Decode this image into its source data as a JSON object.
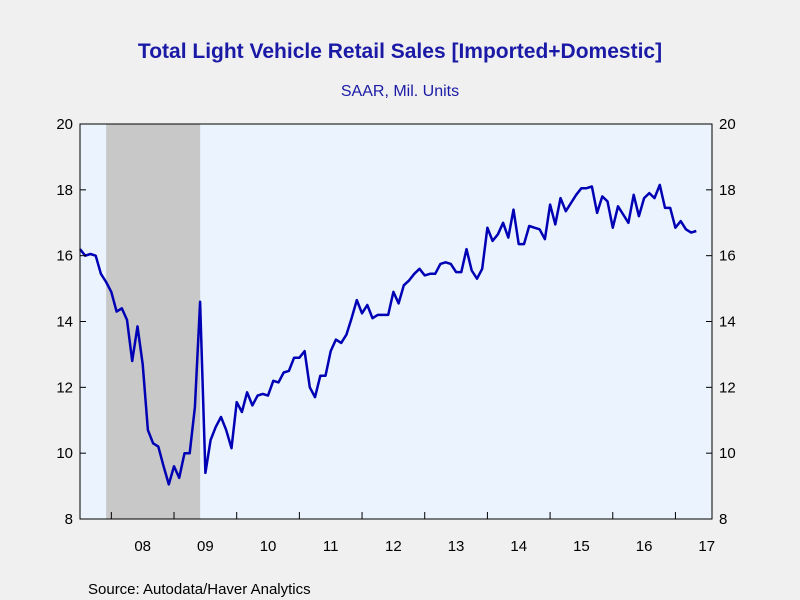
{
  "chart_data": {
    "type": "line",
    "title": "Total Light Vehicle Retail Sales [Imported+Domestic]",
    "subtitle": "SAAR, Mil. Units",
    "source": "Source:  Autodata/Haver Analytics",
    "ylim": [
      8,
      20
    ],
    "y_ticks": [
      "8",
      "10",
      "12",
      "14",
      "16",
      "18",
      "20"
    ],
    "x_ticks": [
      "08",
      "09",
      "10",
      "11",
      "12",
      "13",
      "14",
      "15",
      "16",
      "17"
    ],
    "grid": false,
    "recession": {
      "start": "2007-12",
      "end": "2009-06"
    },
    "colors": {
      "line": "#0000b4",
      "plot_bg": "#eaf3fe",
      "recession": "#c8c8c8"
    },
    "series": [
      {
        "start": "2007-07",
        "frequency": "monthly",
        "values": [
          16.2,
          16.0,
          16.05,
          16.0,
          15.45,
          15.2,
          14.9,
          14.3,
          14.4,
          14.05,
          12.8,
          13.85,
          12.7,
          10.7,
          10.3,
          10.2,
          9.6,
          9.05,
          9.6,
          9.25,
          10.0,
          10.0,
          11.4,
          14.6,
          9.4,
          10.4,
          10.8,
          11.1,
          10.7,
          10.15,
          11.55,
          11.25,
          11.85,
          11.45,
          11.75,
          11.8,
          11.75,
          12.2,
          12.15,
          12.45,
          12.5,
          12.9,
          12.9,
          13.1,
          12.0,
          11.7,
          12.35,
          12.35,
          13.1,
          13.45,
          13.35,
          13.6,
          14.1,
          14.65,
          14.25,
          14.5,
          14.1,
          14.2,
          14.2,
          14.2,
          14.9,
          14.55,
          15.1,
          15.25,
          15.45,
          15.6,
          15.4,
          15.45,
          15.45,
          15.75,
          15.8,
          15.75,
          15.5,
          15.5,
          16.2,
          15.55,
          15.3,
          15.6,
          16.85,
          16.45,
          16.65,
          17.0,
          16.55,
          17.4,
          16.35,
          16.35,
          16.9,
          16.85,
          16.8,
          16.5,
          17.55,
          16.95,
          17.75,
          17.35,
          17.6,
          17.85,
          18.05,
          18.05,
          18.1,
          17.3,
          17.8,
          17.65,
          16.85,
          17.5,
          17.25,
          17.0,
          17.85,
          17.2,
          17.75,
          17.9,
          17.75,
          18.15,
          17.45,
          17.45,
          16.85,
          17.05,
          16.8,
          16.7,
          16.75
        ]
      }
    ]
  }
}
